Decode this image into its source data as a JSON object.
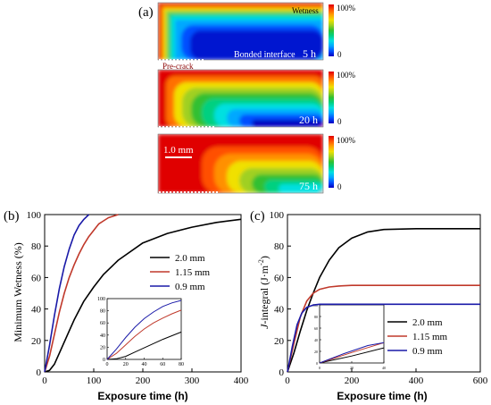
{
  "panel_a": {
    "label": "(a)",
    "annotations": {
      "wetness": "Wetness",
      "bonded_interface": "Bonded interface",
      "pre_crack": "Pre-crack",
      "scale_bar": "1.0 mm"
    },
    "maps": [
      {
        "time": "5 h",
        "cbar_top": "100%",
        "cbar_bottom": "0"
      },
      {
        "time": "20 h",
        "cbar_top": "100%",
        "cbar_bottom": "0"
      },
      {
        "time": "75 h",
        "cbar_top": "100%",
        "cbar_bottom": "0"
      }
    ],
    "colormap": [
      "#0000c0",
      "#0050ff",
      "#00a8ff",
      "#00e0e0",
      "#00d080",
      "#30c030",
      "#a0d020",
      "#f0e000",
      "#ffa000",
      "#ff5000",
      "#e00000"
    ]
  },
  "panel_b": {
    "label": "(b)"
  },
  "panel_c": {
    "label": "(c)"
  },
  "chart_data": [
    {
      "type": "line",
      "panel": "(b)",
      "xlabel": "Exposure time (h)",
      "ylabel": "Minimum Wetness (%)",
      "xlim": [
        0,
        400
      ],
      "ylim": [
        0,
        100
      ],
      "xticks": [
        0,
        100,
        200,
        300,
        400
      ],
      "yticks": [
        0,
        20,
        40,
        60,
        80,
        100
      ],
      "legend_position": "right",
      "series": [
        {
          "name": "2.0 mm",
          "color": "#000000",
          "x": [
            0,
            10,
            20,
            30,
            40,
            50,
            60,
            80,
            100,
            120,
            150,
            200,
            250,
            300,
            350,
            400
          ],
          "y": [
            0,
            1,
            5,
            12,
            19,
            26,
            33,
            45,
            54,
            62,
            71,
            82,
            88,
            92,
            95,
            97
          ]
        },
        {
          "name": "1.15 mm",
          "color": "#c0392b",
          "x": [
            0,
            10,
            20,
            30,
            40,
            50,
            60,
            70,
            80,
            90,
            100,
            110,
            120,
            130,
            150
          ],
          "y": [
            0,
            10,
            24,
            38,
            50,
            60,
            68,
            75,
            81,
            86,
            90,
            94,
            96,
            98,
            100
          ]
        },
        {
          "name": "0.9 mm",
          "color": "#1a1aa8",
          "x": [
            0,
            10,
            20,
            30,
            40,
            50,
            60,
            70,
            80,
            90
          ],
          "y": [
            0,
            17,
            36,
            53,
            67,
            78,
            87,
            93,
            97,
            100
          ]
        }
      ],
      "inset": {
        "xlim": [
          0,
          80
        ],
        "ylim": [
          0,
          100
        ],
        "xticks": [
          0,
          20,
          40,
          60,
          80
        ],
        "yticks": [
          0,
          20,
          40,
          60,
          80,
          100
        ]
      }
    },
    {
      "type": "line",
      "panel": "(c)",
      "xlabel": "Exposure time (h)",
      "ylabel": "J-integral (J·m⁻²)",
      "xlim": [
        0,
        600
      ],
      "ylim": [
        0,
        100
      ],
      "xticks": [
        0,
        200,
        400,
        600
      ],
      "yticks": [
        0,
        20,
        40,
        60,
        80,
        100
      ],
      "legend_position": "bottom-right",
      "series": [
        {
          "name": "2.0 mm",
          "color": "#000000",
          "x": [
            0,
            20,
            40,
            60,
            80,
            100,
            130,
            160,
            200,
            250,
            300,
            400,
            500,
            600
          ],
          "y": [
            0,
            12,
            26,
            39,
            50,
            60,
            71,
            79,
            85,
            89,
            90.5,
            91,
            91,
            91
          ]
        },
        {
          "name": "1.15 mm",
          "color": "#c0392b",
          "x": [
            0,
            20,
            40,
            60,
            80,
            100,
            130,
            160,
            200,
            300,
            400,
            500,
            600
          ],
          "y": [
            0,
            18,
            35,
            45,
            50,
            52.5,
            54,
            54.6,
            55,
            55,
            55,
            55,
            55
          ]
        },
        {
          "name": "0.9 mm",
          "color": "#1a1aa8",
          "x": [
            0,
            15,
            30,
            45,
            60,
            80,
            100,
            150,
            200,
            300,
            400,
            500,
            600
          ],
          "y": [
            0,
            16,
            30,
            37.5,
            41,
            42.5,
            43,
            43,
            43,
            43,
            43,
            43,
            43
          ]
        }
      ],
      "inset": {
        "xlim": [
          0,
          40
        ],
        "ylim": [
          0,
          100
        ],
        "xticks": [
          0,
          20,
          40
        ],
        "yticks": [
          0,
          20,
          40,
          60,
          80,
          100
        ]
      }
    }
  ]
}
